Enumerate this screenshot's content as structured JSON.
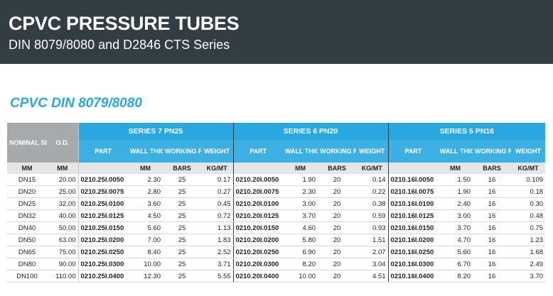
{
  "header": {
    "title": "CPVC PRESSURE TUBES",
    "subtitle": "DIN 8079/8080 and D2846 CTS Series"
  },
  "section_title": "CPVC DIN 8079/8080",
  "table": {
    "nominal_size_label": "NOMINAL SIZE",
    "od_label": "O.D.",
    "series": [
      {
        "name": "SERIES 7 PN25"
      },
      {
        "name": "SERIES 6 PN20"
      },
      {
        "name": "SERIES 5 PN16"
      }
    ],
    "columns": {
      "part": "PART",
      "wall_thickness": "WALL THICKNESS",
      "working_pressure": "WORKING PRESSURE",
      "weight": "WEIGHT"
    },
    "units": {
      "nominal": "MM",
      "od": "MM",
      "wall": "MM",
      "pressure": "BARS",
      "weight": "KG/MT"
    },
    "rows": [
      {
        "nominal": "DN15",
        "od": "20.00",
        "s": [
          {
            "part": "0210.25I.0050",
            "wall": "2.30",
            "bars": "25",
            "weight": "0.17"
          },
          {
            "part": "0210.20I.0050",
            "wall": "1.90",
            "bars": "20",
            "weight": "0.14"
          },
          {
            "part": "0210.16I.0050",
            "wall": "1.50",
            "bars": "16",
            "weight": "0.109"
          }
        ]
      },
      {
        "nominal": "DN20",
        "od": "25.00",
        "s": [
          {
            "part": "0210.25I.0075",
            "wall": "2.80",
            "bars": "25",
            "weight": "0.27"
          },
          {
            "part": "0210.20I.0075",
            "wall": "2.30",
            "bars": "20",
            "weight": "0.22"
          },
          {
            "part": "0210.16I.0075",
            "wall": "1.90",
            "bars": "16",
            "weight": "0.18"
          }
        ]
      },
      {
        "nominal": "DN25",
        "od": "32.00",
        "s": [
          {
            "part": "0210.25I.0100",
            "wall": "3.60",
            "bars": "25",
            "weight": "0.45"
          },
          {
            "part": "0210.20I.0100",
            "wall": "3.00",
            "bars": "20",
            "weight": "0.38"
          },
          {
            "part": "0210.16I.0100",
            "wall": "2.40",
            "bars": "16",
            "weight": "0.30"
          }
        ]
      },
      {
        "nominal": "DN32",
        "od": "40.00",
        "s": [
          {
            "part": "0210.25I.0125",
            "wall": "4.50",
            "bars": "25",
            "weight": "0.72"
          },
          {
            "part": "0210.20I.0125",
            "wall": "3.70",
            "bars": "20",
            "weight": "0.59"
          },
          {
            "part": "0210.16I.0125",
            "wall": "3.00",
            "bars": "16",
            "weight": "0.48"
          }
        ]
      },
      {
        "nominal": "DN40",
        "od": "50.00",
        "s": [
          {
            "part": "0210.25I.0150",
            "wall": "5.60",
            "bars": "25",
            "weight": "1.13"
          },
          {
            "part": "0210.20I.0150",
            "wall": "4.60",
            "bars": "20",
            "weight": "0.93"
          },
          {
            "part": "0210.16I.0150",
            "wall": "3.70",
            "bars": "16",
            "weight": "0.75"
          }
        ]
      },
      {
        "nominal": "DN50",
        "od": "63.00",
        "s": [
          {
            "part": "0210.25I.0200",
            "wall": "7.00",
            "bars": "25",
            "weight": "1.83"
          },
          {
            "part": "0210.20I.0200",
            "wall": "5.80",
            "bars": "20",
            "weight": "1.51"
          },
          {
            "part": "0210.16I.0200",
            "wall": "4.70",
            "bars": "16",
            "weight": "1.23"
          }
        ]
      },
      {
        "nominal": "DN65",
        "od": "75.00",
        "s": [
          {
            "part": "0210.25I.0250",
            "wall": "8.40",
            "bars": "25",
            "weight": "2.52"
          },
          {
            "part": "0210.20I.0250",
            "wall": "6.90",
            "bars": "20",
            "weight": "2.07"
          },
          {
            "part": "0210.16I.0250",
            "wall": "5.60",
            "bars": "16",
            "weight": "1.68"
          }
        ]
      },
      {
        "nominal": "DN80",
        "od": "90.00",
        "s": [
          {
            "part": "0210.25I.0300",
            "wall": "10.00",
            "bars": "25",
            "weight": "3.71"
          },
          {
            "part": "0210.20I.0300",
            "wall": "8.20",
            "bars": "20",
            "weight": "3.04"
          },
          {
            "part": "0210.16I.0300",
            "wall": "6.70",
            "bars": "16",
            "weight": "2.49"
          }
        ]
      },
      {
        "nominal": "DN100",
        "od": "110.00",
        "s": [
          {
            "part": "0210.25I.0400",
            "wall": "12.30",
            "bars": "25",
            "weight": "5.55"
          },
          {
            "part": "0210.20I.0400",
            "wall": "10.00",
            "bars": "20",
            "weight": "4.51"
          },
          {
            "part": "0210.16I.0400",
            "wall": "8.20",
            "bars": "16",
            "weight": "3.70"
          }
        ]
      }
    ]
  },
  "colors": {
    "banner": "#333d44",
    "accent_blue": "#29a8e0",
    "header_gray": "#a7aaad"
  }
}
